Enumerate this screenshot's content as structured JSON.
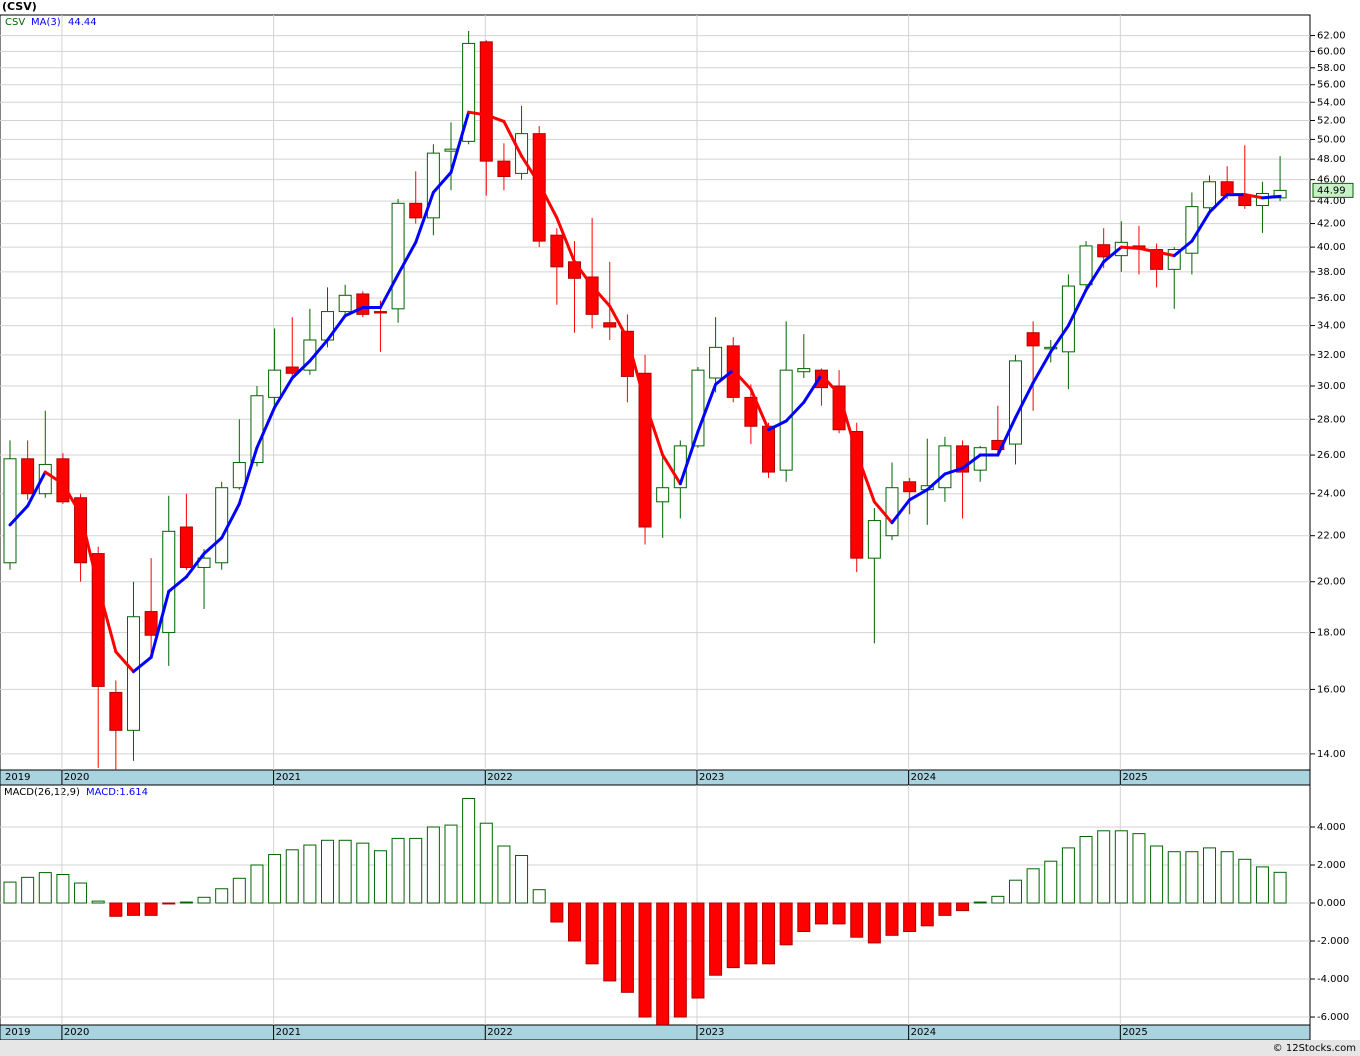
{
  "chart_data": [
    {
      "type": "candlestick",
      "title": "(CSV)",
      "symbol": "CSV",
      "categories": [
        "2019",
        null,
        null,
        "2020",
        null,
        null,
        null,
        null,
        null,
        null,
        null,
        null,
        null,
        null,
        null,
        "2021",
        null,
        null,
        null,
        null,
        null,
        null,
        null,
        null,
        null,
        null,
        null,
        "2022",
        null,
        null,
        null,
        null,
        null,
        null,
        null,
        null,
        null,
        null,
        null,
        "2023",
        null,
        null,
        null,
        null,
        null,
        null,
        null,
        null,
        null,
        null,
        null,
        "2024",
        null,
        null,
        null,
        null,
        null,
        null,
        null,
        null,
        null,
        null,
        null,
        "2025",
        null,
        null,
        null,
        null,
        null,
        null,
        null,
        null,
        null
      ],
      "open": [
        20.8,
        25.8,
        24.0,
        25.8,
        23.8,
        21.2,
        15.9,
        14.7,
        18.8,
        18.0,
        22.4,
        20.6,
        20.8,
        24.3,
        25.6,
        29.3,
        31.2,
        31.0,
        33.0,
        35.0,
        36.3,
        35.0,
        35.2,
        43.8,
        42.5,
        48.8,
        49.8,
        61.2,
        47.8,
        46.6,
        50.6,
        41.0,
        38.8,
        37.6,
        34.2,
        33.6,
        30.8,
        23.6,
        24.3,
        26.5,
        30.5,
        32.6,
        29.3,
        27.6,
        25.2,
        30.9,
        31.0,
        30.0,
        27.3,
        21.0,
        22.0,
        24.6,
        24.2,
        24.3,
        26.5,
        25.2,
        26.8,
        26.6,
        33.5,
        32.4,
        32.2,
        37.0,
        40.2,
        39.3,
        40.1,
        39.8,
        38.2,
        39.5,
        43.4,
        45.8,
        44.5,
        43.6,
        44.3
      ],
      "high": [
        26.8,
        26.8,
        28.5,
        26.1,
        24.0,
        21.5,
        16.3,
        20.0,
        21.0,
        23.9,
        24.0,
        21.4,
        24.6,
        28.0,
        30.0,
        33.8,
        34.6,
        35.2,
        36.8,
        37.0,
        36.5,
        35.8,
        44.2,
        46.8,
        49.5,
        51.8,
        62.6,
        61.4,
        49.6,
        53.6,
        51.4,
        41.6,
        40.5,
        42.5,
        38.8,
        34.8,
        32.0,
        26.0,
        26.8,
        31.2,
        34.6,
        33.2,
        30.1,
        27.8,
        34.3,
        33.4,
        31.1,
        31.0,
        27.8,
        23.3,
        25.6,
        24.8,
        26.9,
        27.0,
        26.8,
        26.5,
        28.8,
        32.0,
        34.3,
        33.0,
        37.8,
        40.5,
        41.6,
        42.2,
        41.8,
        40.3,
        40.0,
        44.8,
        46.4,
        47.3,
        49.4,
        45.8,
        48.3
      ],
      "low": [
        20.5,
        23.7,
        23.8,
        23.5,
        20.0,
        13.6,
        13.5,
        13.8,
        17.2,
        16.8,
        20.5,
        18.9,
        20.5,
        24.2,
        25.4,
        28.8,
        30.5,
        30.7,
        32.5,
        34.6,
        34.6,
        32.2,
        34.2,
        42.0,
        41.0,
        45.0,
        49.5,
        44.5,
        45.0,
        46.0,
        40.0,
        35.5,
        33.5,
        33.8,
        33.0,
        29.0,
        21.6,
        21.9,
        22.8,
        26.4,
        29.6,
        29.0,
        26.6,
        24.8,
        24.6,
        30.5,
        28.8,
        27.2,
        20.4,
        17.6,
        21.8,
        23.0,
        22.5,
        23.6,
        22.8,
        24.6,
        26.0,
        25.5,
        28.5,
        31.5,
        29.8,
        36.5,
        38.3,
        38.0,
        37.8,
        36.8,
        35.2,
        37.8,
        43.0,
        44.2,
        43.3,
        41.2,
        44.0
      ],
      "close": [
        25.8,
        24.0,
        25.5,
        23.6,
        20.8,
        16.1,
        14.7,
        18.6,
        17.9,
        22.2,
        20.6,
        21.0,
        24.3,
        25.6,
        29.4,
        31.0,
        30.8,
        33.0,
        35.0,
        36.2,
        34.8,
        34.9,
        43.8,
        42.5,
        48.6,
        49.0,
        61.0,
        47.8,
        46.3,
        50.6,
        40.5,
        38.4,
        37.5,
        34.8,
        33.9,
        30.6,
        22.4,
        24.3,
        26.5,
        31.0,
        32.5,
        29.3,
        27.6,
        25.1,
        31.0,
        31.1,
        29.9,
        27.4,
        21.0,
        22.7,
        24.3,
        24.1,
        24.4,
        26.5,
        25.1,
        26.4,
        26.3,
        31.6,
        32.6,
        32.5,
        36.9,
        40.1,
        39.2,
        40.4,
        39.9,
        38.2,
        39.8,
        43.5,
        45.8,
        44.5,
        43.6,
        44.7,
        44.99
      ],
      "up_color": "#006400",
      "down_color": "#ff0000",
      "last_price_label": "44.99",
      "series": [
        {
          "name": "MA(3)",
          "value_label": "44.44",
          "color": "#0000ff",
          "down_color": "#ff0000",
          "values": [
            22.5,
            23.4,
            25.1,
            24.5,
            23.0,
            19.8,
            17.3,
            16.6,
            17.1,
            19.6,
            20.2,
            21.2,
            21.9,
            23.5,
            26.4,
            28.7,
            30.5,
            31.6,
            33.0,
            34.7,
            35.3,
            35.3,
            37.8,
            40.4,
            44.8,
            46.7,
            52.9,
            52.6,
            51.9,
            48.3,
            45.6,
            42.5,
            38.8,
            36.9,
            35.4,
            33.1,
            29.0,
            26.0,
            24.5,
            27.3,
            30.1,
            31.0,
            29.8,
            27.4,
            27.9,
            29.0,
            30.7,
            29.5,
            26.1,
            23.6,
            22.6,
            23.7,
            24.2,
            25.0,
            25.3,
            26.0,
            26.0,
            28.1,
            30.2,
            32.2,
            34.0,
            36.6,
            38.8,
            40.0,
            39.9,
            39.6,
            39.3,
            40.5,
            43.0,
            44.6,
            44.6,
            44.3,
            44.44
          ]
        }
      ],
      "log_scale": true,
      "grid": true,
      "ylim": [
        13.54,
        64.7
      ],
      "yticks": [
        {
          "value": 14,
          "label": "14.00"
        },
        {
          "value": 16,
          "label": "16.00"
        },
        {
          "value": 18,
          "label": "18.00"
        },
        {
          "value": 20,
          "label": "20.00"
        },
        {
          "value": 22,
          "label": "22.00"
        },
        {
          "value": 24,
          "label": "24.00"
        },
        {
          "value": 26,
          "label": "26.00"
        },
        {
          "value": 28,
          "label": "28.00"
        },
        {
          "value": 30,
          "label": "30.00"
        },
        {
          "value": 32,
          "label": "32.00"
        },
        {
          "value": 34,
          "label": "34.00"
        },
        {
          "value": 36,
          "label": "36.00"
        },
        {
          "value": 38,
          "label": "38.00"
        },
        {
          "value": 40,
          "label": "40.00"
        },
        {
          "value": 42,
          "label": "42.00"
        },
        {
          "value": 44,
          "label": "44.00"
        },
        {
          "value": 46,
          "label": "46.00"
        },
        {
          "value": 48,
          "label": "48.00"
        },
        {
          "value": 50,
          "label": "50.00"
        },
        {
          "value": 52,
          "label": "52.00"
        },
        {
          "value": 54,
          "label": "54.00"
        },
        {
          "value": 56,
          "label": "56.00"
        },
        {
          "value": 58,
          "label": "58.00"
        },
        {
          "value": 60,
          "label": "60.00"
        },
        {
          "value": 62,
          "label": "62.00"
        }
      ]
    },
    {
      "type": "bar",
      "title": "MACD(26,12,9)",
      "value_label": "MACD:1.614",
      "categories": [
        "2019",
        null,
        null,
        "2020",
        null,
        null,
        null,
        null,
        null,
        null,
        null,
        null,
        null,
        null,
        null,
        "2021",
        null,
        null,
        null,
        null,
        null,
        null,
        null,
        null,
        null,
        null,
        null,
        "2022",
        null,
        null,
        null,
        null,
        null,
        null,
        null,
        null,
        null,
        null,
        null,
        "2023",
        null,
        null,
        null,
        null,
        null,
        null,
        null,
        null,
        null,
        null,
        null,
        "2024",
        null,
        null,
        null,
        null,
        null,
        null,
        null,
        null,
        null,
        null,
        null,
        "2025",
        null,
        null,
        null,
        null,
        null,
        null,
        null,
        null,
        null
      ],
      "values": [
        1.1,
        1.35,
        1.6,
        1.5,
        1.05,
        0.1,
        -0.7,
        -0.65,
        -0.65,
        -0.05,
        0.05,
        0.3,
        0.75,
        1.3,
        2.0,
        2.55,
        2.8,
        3.05,
        3.3,
        3.3,
        3.15,
        2.75,
        3.4,
        3.4,
        4.0,
        4.1,
        5.5,
        4.2,
        3.0,
        2.5,
        0.7,
        -1.0,
        -2.0,
        -3.2,
        -4.1,
        -4.7,
        -6.0,
        -6.4,
        -6.0,
        -5.0,
        -3.8,
        -3.4,
        -3.2,
        -3.2,
        -2.2,
        -1.5,
        -1.1,
        -1.1,
        -1.8,
        -2.1,
        -1.7,
        -1.5,
        -1.2,
        -0.65,
        -0.4,
        0.05,
        0.35,
        1.2,
        1.8,
        2.2,
        2.9,
        3.5,
        3.8,
        3.8,
        3.65,
        3.0,
        2.7,
        2.7,
        2.9,
        2.7,
        2.3,
        1.9,
        1.614
      ],
      "up_color": "#006400",
      "down_color": "#ff0000",
      "grid": true,
      "ylim": [
        -6.42,
        6.21
      ],
      "yticks": [
        {
          "value": 4,
          "label": "4.000"
        },
        {
          "value": 2,
          "label": "2.000"
        },
        {
          "value": 0,
          "label": "0.000"
        },
        {
          "value": -2,
          "label": "-2.000"
        },
        {
          "value": -4,
          "label": "-4.000"
        },
        {
          "value": -6,
          "label": "-6.000"
        }
      ]
    }
  ],
  "credit": "© 12Stocks.com"
}
